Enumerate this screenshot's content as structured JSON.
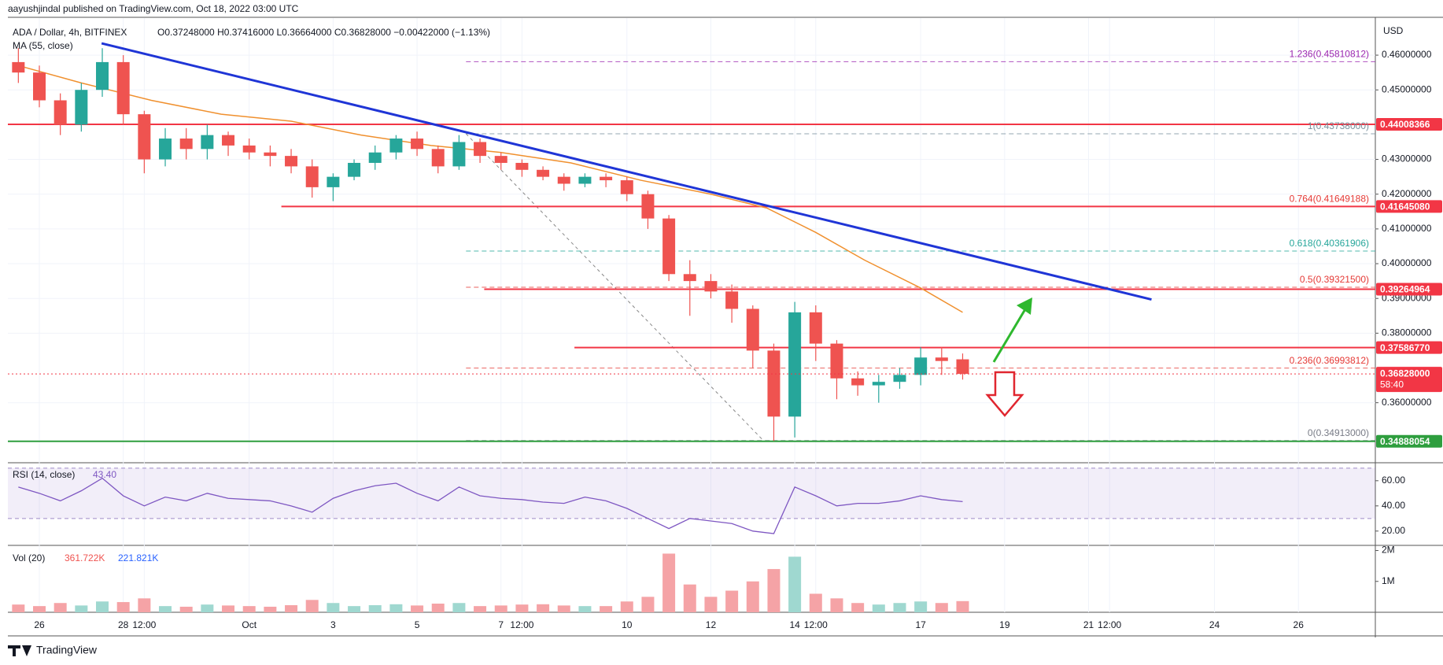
{
  "chart_data": {
    "type": "candlestick",
    "publisher": "aayushjindal published on TradingView.com, Oct 18, 2022 03:00 UTC",
    "symbol": "ADA / Dollar, 4h, BITFINEX",
    "ohlc": "O0.37248000 H0.37416000 L0.36664000 C0.36828000 −0.00422000 (−1.13%)",
    "ma_title": "MA (55, close)",
    "currency": "USD",
    "brand": "TradingView",
    "up_color": "#26a69a",
    "down_color": "#ef5350",
    "xlim": [
      -0.5,
      195
    ],
    "xticks": [
      {
        "value": 4,
        "label": "26"
      },
      {
        "value": 16,
        "label": "28"
      },
      {
        "value": 19,
        "label": "12:00"
      },
      {
        "value": 34,
        "label": "Oct"
      },
      {
        "value": 46,
        "label": "3"
      },
      {
        "value": 58,
        "label": "5"
      },
      {
        "value": 70,
        "label": "7"
      },
      {
        "value": 73,
        "label": "12:00"
      },
      {
        "value": 88,
        "label": "10"
      },
      {
        "value": 100,
        "label": "12"
      },
      {
        "value": 112,
        "label": "14"
      },
      {
        "value": 115,
        "label": "12:00"
      },
      {
        "value": 130,
        "label": "17"
      },
      {
        "value": 142,
        "label": "19"
      },
      {
        "value": 154,
        "label": "21"
      },
      {
        "value": 157,
        "label": "12:00"
      },
      {
        "value": 172,
        "label": "24"
      },
      {
        "value": 184,
        "label": "26"
      }
    ],
    "ylim": [
      0.3434,
      0.4693
    ],
    "yticks": [
      {
        "value": 0.36,
        "label": "0.36000000"
      },
      {
        "value": 0.38,
        "label": "0.38000000"
      },
      {
        "value": 0.39,
        "label": "0.39000000"
      },
      {
        "value": 0.4,
        "label": "0.40000000"
      },
      {
        "value": 0.41,
        "label": "0.41000000"
      },
      {
        "value": 0.42,
        "label": "0.42000000"
      },
      {
        "value": 0.43,
        "label": "0.43000000"
      },
      {
        "value": 0.45,
        "label": "0.45000000"
      },
      {
        "value": 0.46,
        "label": "0.46000000"
      }
    ],
    "grid": true,
    "candles": {
      "x": [
        1,
        4,
        7,
        10,
        13,
        16,
        19,
        22,
        25,
        28,
        31,
        34,
        37,
        40,
        43,
        46,
        49,
        52,
        55,
        58,
        61,
        64,
        67,
        70,
        73,
        76,
        79,
        82,
        85,
        88,
        91,
        94,
        97,
        100,
        103,
        106,
        109,
        112,
        115,
        118,
        121,
        124,
        127,
        130,
        133,
        136
      ],
      "open": [
        0.458,
        0.455,
        0.447,
        0.44,
        0.45,
        0.458,
        0.443,
        0.43,
        0.436,
        0.433,
        0.437,
        0.434,
        0.432,
        0.431,
        0.428,
        0.422,
        0.425,
        0.429,
        0.432,
        0.436,
        0.433,
        0.428,
        0.435,
        0.431,
        0.429,
        0.427,
        0.425,
        0.423,
        0.425,
        0.424,
        0.42,
        0.413,
        0.397,
        0.395,
        0.392,
        0.387,
        0.375,
        0.356,
        0.386,
        0.377,
        0.367,
        0.365,
        0.366,
        0.368,
        0.373,
        0.37248
      ],
      "high": [
        0.462,
        0.457,
        0.449,
        0.452,
        0.462,
        0.46,
        0.444,
        0.439,
        0.439,
        0.44,
        0.438,
        0.436,
        0.434,
        0.433,
        0.43,
        0.426,
        0.43,
        0.434,
        0.437,
        0.438,
        0.434,
        0.437,
        0.436,
        0.432,
        0.43,
        0.428,
        0.426,
        0.426,
        0.426,
        0.425,
        0.421,
        0.414,
        0.401,
        0.397,
        0.394,
        0.388,
        0.377,
        0.389,
        0.388,
        0.378,
        0.369,
        0.368,
        0.37,
        0.376,
        0.376,
        0.37416
      ],
      "low": [
        0.452,
        0.445,
        0.437,
        0.438,
        0.448,
        0.44,
        0.426,
        0.428,
        0.43,
        0.43,
        0.431,
        0.43,
        0.428,
        0.426,
        0.419,
        0.418,
        0.424,
        0.427,
        0.43,
        0.431,
        0.426,
        0.427,
        0.429,
        0.427,
        0.425,
        0.424,
        0.421,
        0.422,
        0.422,
        0.418,
        0.41,
        0.395,
        0.385,
        0.39,
        0.383,
        0.37,
        0.349,
        0.35,
        0.372,
        0.361,
        0.362,
        0.36,
        0.364,
        0.365,
        0.368,
        0.36664
      ],
      "close": [
        0.455,
        0.447,
        0.44,
        0.45,
        0.458,
        0.443,
        0.43,
        0.436,
        0.433,
        0.437,
        0.434,
        0.432,
        0.431,
        0.428,
        0.422,
        0.425,
        0.429,
        0.432,
        0.436,
        0.433,
        0.428,
        0.435,
        0.431,
        0.429,
        0.427,
        0.425,
        0.423,
        0.425,
        0.424,
        0.42,
        0.413,
        0.397,
        0.395,
        0.392,
        0.387,
        0.375,
        0.356,
        0.386,
        0.377,
        0.367,
        0.365,
        0.366,
        0.368,
        0.373,
        0.372,
        0.36828
      ]
    },
    "ma": {
      "color": "#f0902e",
      "x": [
        1,
        10,
        20,
        30,
        40,
        50,
        60,
        70,
        80,
        90,
        100,
        108,
        115,
        122,
        130,
        136
      ],
      "values": [
        0.457,
        0.452,
        0.447,
        0.443,
        0.441,
        0.437,
        0.434,
        0.432,
        0.429,
        0.424,
        0.42,
        0.416,
        0.409,
        0.401,
        0.393,
        0.386
      ]
    },
    "trendline": {
      "color": "#1f35d6",
      "x": [
        12.9,
        163
      ],
      "values": [
        0.4634,
        0.3897
      ]
    },
    "levels": [
      {
        "value": 0.44008366,
        "label": "0.44008366",
        "color": "#f23645"
      },
      {
        "value": 0.4164508,
        "label": "0.41645080",
        "color": "#f23645"
      },
      {
        "value": 0.39264964,
        "label": "0.39264964",
        "color": "#f23645"
      },
      {
        "value": 0.3758677,
        "label": "0.37586770",
        "color": "#f23645"
      },
      {
        "value": 0.34888054,
        "label": "0.34888054",
        "color": "#2e9e3e"
      }
    ],
    "last_price": {
      "value": 0.36828,
      "label": "0.36828000",
      "countdown": "58:40",
      "color": "#f23645"
    },
    "fib": [
      {
        "value": 0.45810812,
        "label": "1.236(0.45810812)",
        "color": "#9c27b0"
      },
      {
        "value": 0.43738,
        "label": "1(0.43738000)",
        "color": "#78909c"
      },
      {
        "value": 0.41649188,
        "label": "0.764(0.41649188)",
        "color": "#e53935"
      },
      {
        "value": 0.40361906,
        "label": "0.618(0.40361906)",
        "color": "#26a69a"
      },
      {
        "value": 0.393215,
        "label": "0.5(0.39321500)",
        "color": "#e53935"
      },
      {
        "value": 0.36993812,
        "label": "0.236(0.36993812)",
        "color": "#e53935"
      },
      {
        "value": 0.34913,
        "label": "0(0.34913000)",
        "color": "#787b86"
      }
    ],
    "rsi": {
      "title": "RSI (14, close)",
      "value_label": "43.40",
      "color": "#7e57c2",
      "band": [
        30,
        70
      ],
      "ylim": [
        10.5,
        72.4
      ],
      "yticks": [
        {
          "value": 20,
          "label": "20.00"
        },
        {
          "value": 40,
          "label": "40.00"
        },
        {
          "value": 60,
          "label": "60.00"
        }
      ],
      "values": [
        55,
        50,
        44,
        52,
        62,
        48,
        40,
        47,
        44,
        50,
        46,
        45,
        44,
        40,
        35,
        46,
        52,
        56,
        58,
        50,
        44,
        55,
        48,
        46,
        45,
        43,
        42,
        47,
        44,
        38,
        30,
        22,
        30,
        28,
        26,
        20,
        18,
        55,
        48,
        40,
        42,
        42,
        44,
        48,
        45,
        43.4
      ]
    },
    "volume": {
      "title": "Vol (20)",
      "labels": [
        "361.722K",
        "221.821K"
      ],
      "up_color": "#9fd8d0",
      "down_color": "#f5a3a6",
      "ylim": [
        0,
        2090000
      ],
      "yticks": [
        {
          "value": 1000000,
          "label": "1M"
        },
        {
          "value": 2000000,
          "label": "2M"
        }
      ],
      "values": [
        250000,
        200000,
        300000,
        220000,
        350000,
        330000,
        450000,
        200000,
        180000,
        250000,
        220000,
        200000,
        180000,
        230000,
        400000,
        300000,
        200000,
        230000,
        260000,
        220000,
        280000,
        300000,
        200000,
        220000,
        250000,
        260000,
        220000,
        200000,
        200000,
        350000,
        500000,
        1900000,
        900000,
        500000,
        700000,
        1000000,
        1400000,
        1800000,
        600000,
        450000,
        300000,
        250000,
        300000,
        350000,
        300000,
        361722
      ]
    }
  }
}
